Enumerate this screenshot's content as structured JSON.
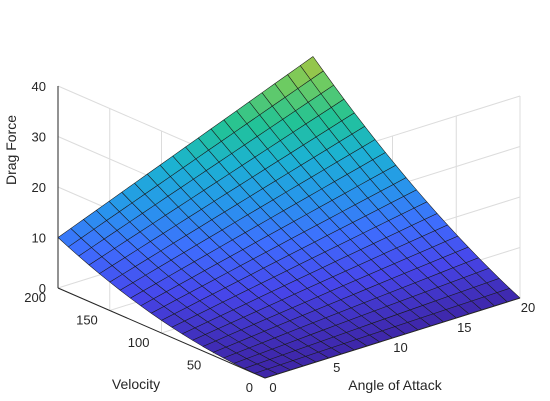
{
  "chart_data": {
    "type": "surface",
    "title": "",
    "xlabel": "Angle of Attack",
    "ylabel": "Velocity",
    "zlabel": "Drag Force",
    "x_ticks": [
      "0",
      "5",
      "10",
      "15",
      "20"
    ],
    "y_ticks": [
      "0",
      "50",
      "100",
      "150",
      "200"
    ],
    "z_ticks": [
      "0",
      "10",
      "20",
      "30",
      "40"
    ],
    "xlim": [
      0,
      20
    ],
    "ylim": [
      0,
      200
    ],
    "zlim": [
      0,
      40
    ],
    "grid": true,
    "colormap": "parula",
    "colormap_stops": [
      "#3e26a8",
      "#4746eb",
      "#3e6ffe",
      "#2797eb",
      "#1cb2d2",
      "#22c395",
      "#6fcb61",
      "#c7c02f",
      "#fcc33a",
      "#f9fb15"
    ],
    "x": [
      0,
      1,
      2,
      3,
      4,
      5,
      6,
      7,
      8,
      9,
      10,
      11,
      12,
      13,
      14,
      15,
      16,
      17,
      18,
      19,
      20
    ],
    "y": [
      0,
      10,
      20,
      30,
      40,
      50,
      60,
      70,
      80,
      90,
      100,
      110,
      120,
      130,
      140,
      150,
      160,
      170,
      180,
      190,
      200
    ],
    "z_model": "z = 0.00025*v^2 + 0.005*v*a",
    "z_corners": {
      "a0_v0": 0,
      "a20_v0": 0,
      "a0_v200": 10,
      "a20_v200": 30
    }
  }
}
